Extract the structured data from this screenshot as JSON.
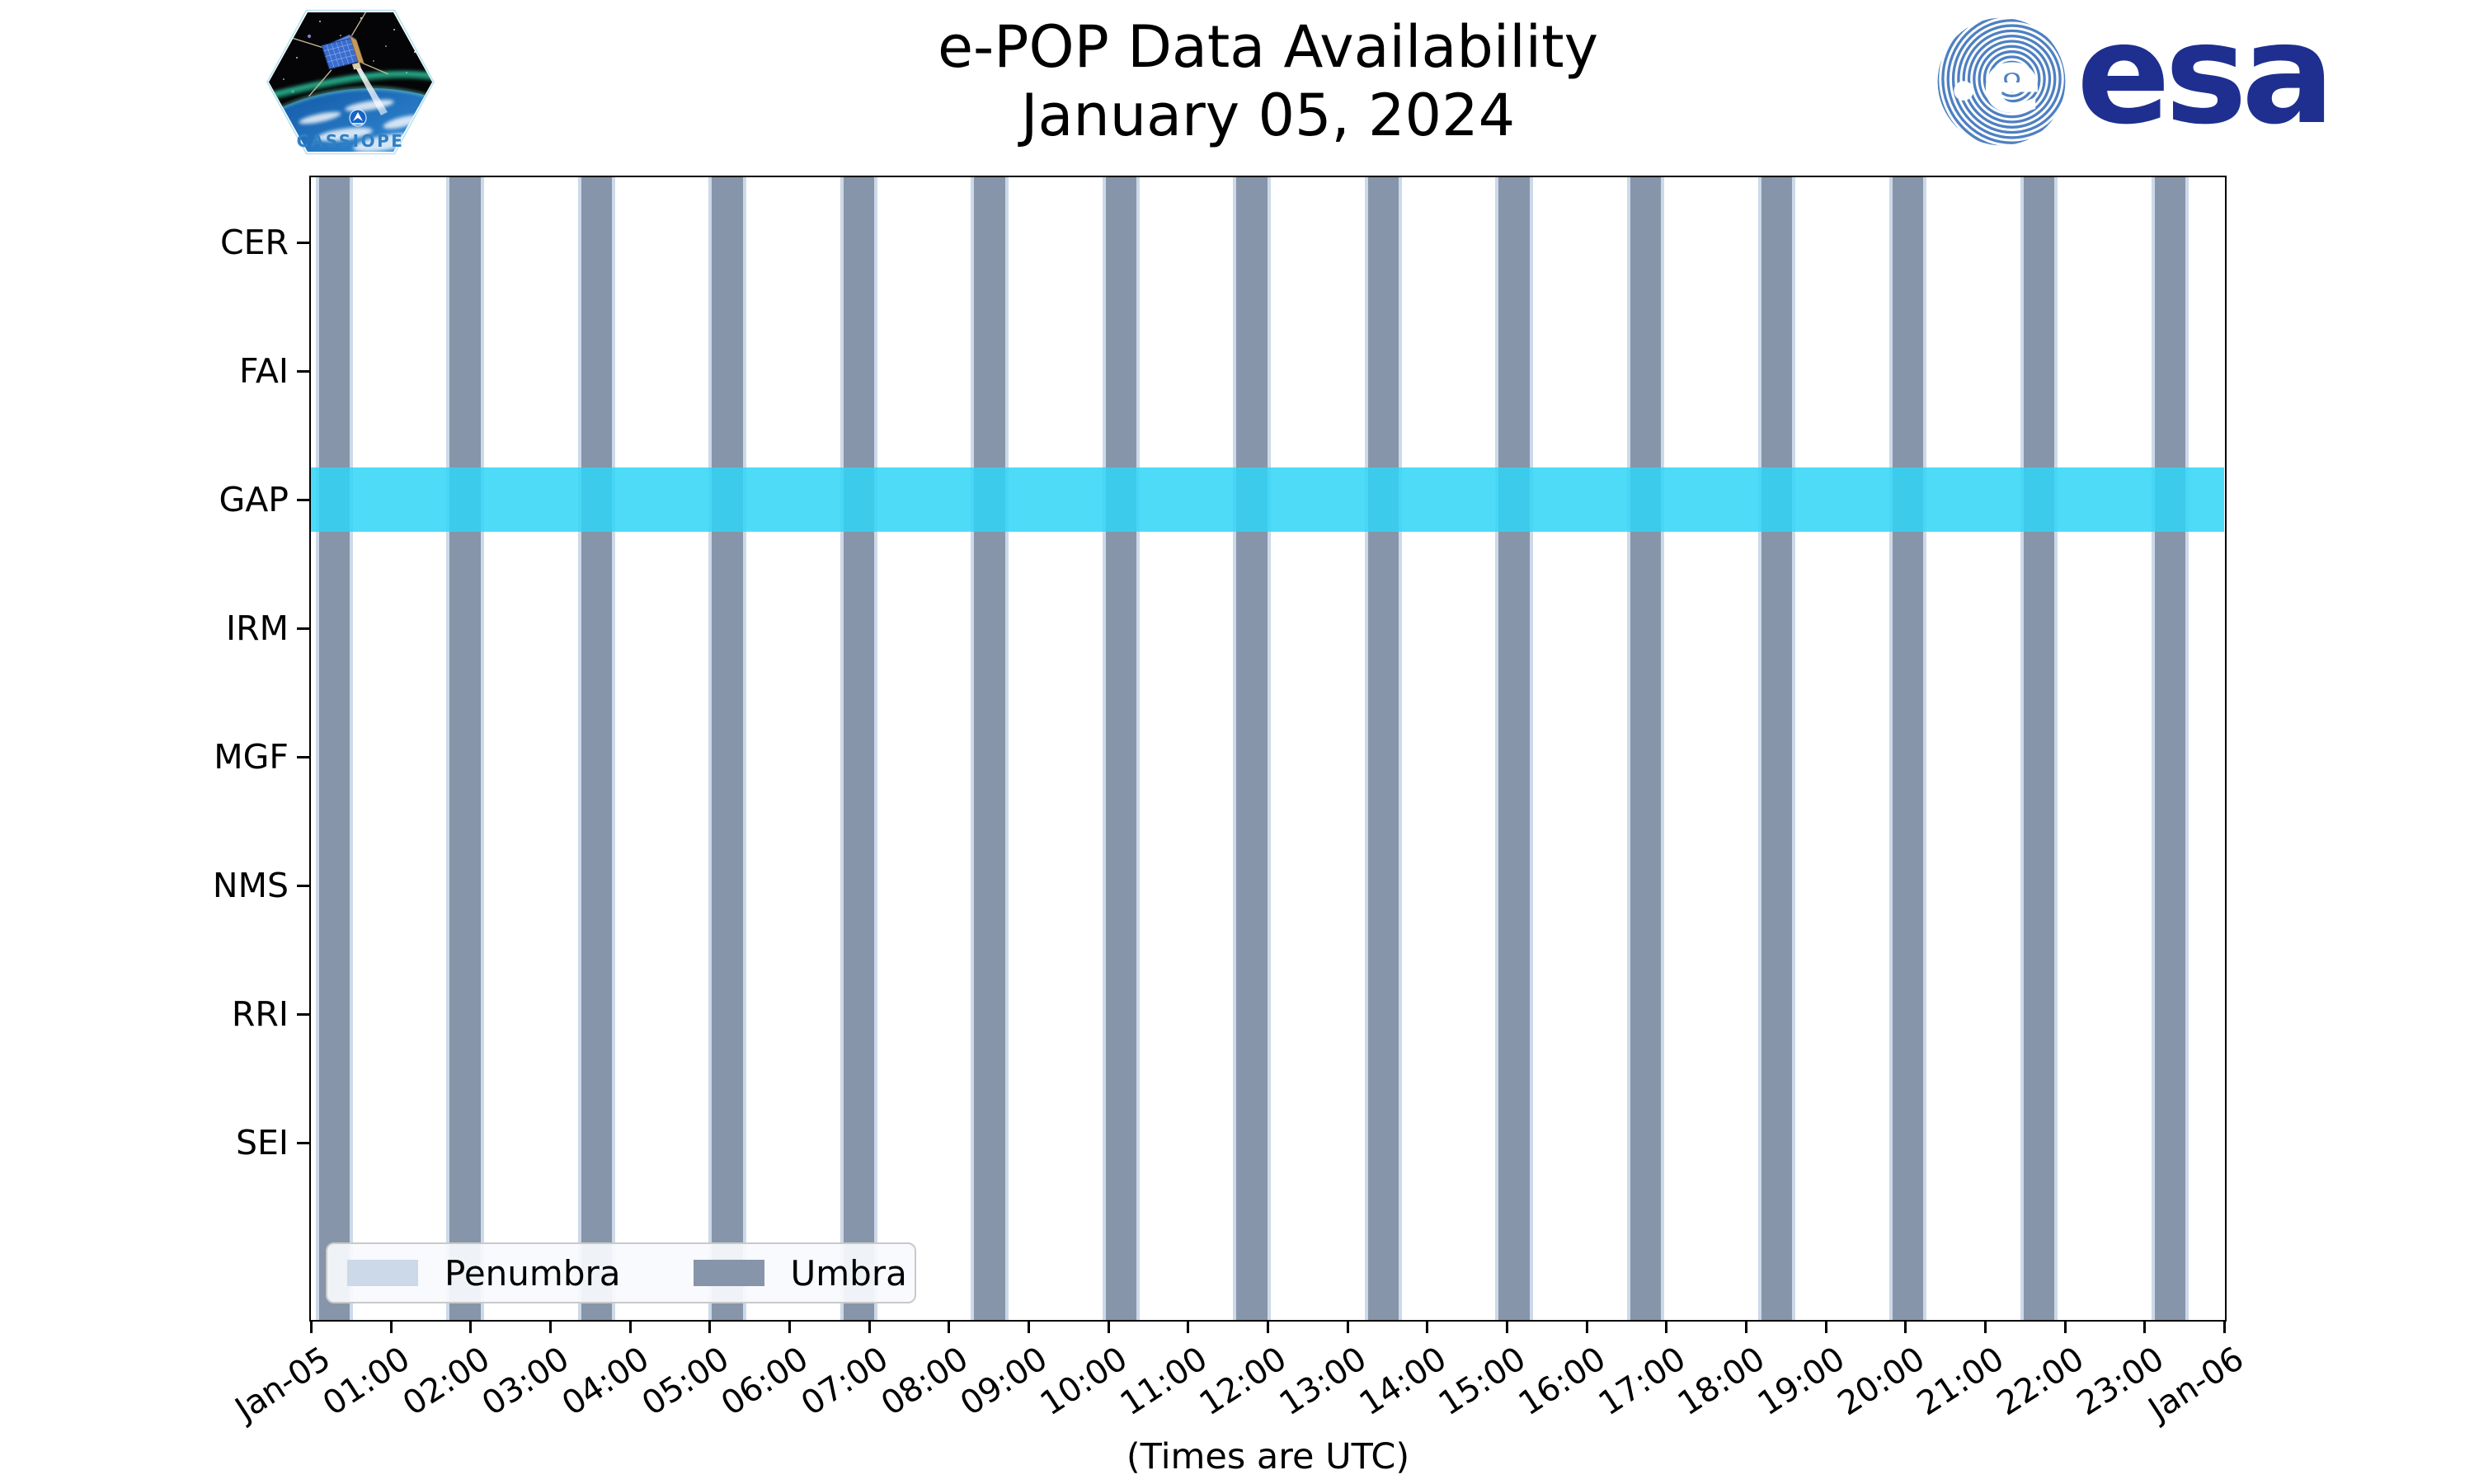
{
  "header": {
    "title": "e-POP Data Availability",
    "subtitle": "January 05, 2024"
  },
  "branding": {
    "cassiope_patch_text": "CASSIOPE",
    "esa_wordmark_text": "esa"
  },
  "chart_data": {
    "type": "bar",
    "variant": "availability-timeline (broken horizontal bars vs. time of day)",
    "title": "e-POP Data Availability",
    "subtitle": "January 05, 2024",
    "xlabel": "(Times are UTC)",
    "x_axis": {
      "span_hours": 24,
      "tick_labels": [
        "Jan-05",
        "01:00",
        "02:00",
        "03:00",
        "04:00",
        "05:00",
        "06:00",
        "07:00",
        "08:00",
        "09:00",
        "10:00",
        "11:00",
        "12:00",
        "13:00",
        "14:00",
        "15:00",
        "16:00",
        "17:00",
        "18:00",
        "19:00",
        "20:00",
        "21:00",
        "22:00",
        "23:00",
        "Jan-06"
      ],
      "tick_label_rotation_deg": -33
    },
    "instruments": [
      "CER",
      "FAI",
      "GAP",
      "IRM",
      "MGF",
      "NMS",
      "RRI",
      "SEI"
    ],
    "availability": [
      {
        "instrument": "GAP",
        "intervals_hours": [
          [
            0,
            24
          ]
        ]
      }
    ],
    "umbra_intervals_hours": [
      [
        0.1,
        0.49
      ],
      [
        1.74,
        2.13
      ],
      [
        3.39,
        3.78
      ],
      [
        5.03,
        5.42
      ],
      [
        6.68,
        7.07
      ],
      [
        8.32,
        8.71
      ],
      [
        9.97,
        10.36
      ],
      [
        11.61,
        12.0
      ],
      [
        13.26,
        13.65
      ],
      [
        14.9,
        15.29
      ],
      [
        16.55,
        16.94
      ],
      [
        18.19,
        18.58
      ],
      [
        19.84,
        20.23
      ],
      [
        21.48,
        21.87
      ],
      [
        23.13,
        23.52
      ]
    ],
    "penumbra_halfwidth_hours": 0.04,
    "legend": [
      {
        "label": "Penumbra",
        "color": "#ccd9e8"
      },
      {
        "label": "Umbra",
        "color": "#8695a9"
      }
    ],
    "legend_position": "lower-left inside plot",
    "grid": false,
    "colors": {
      "umbra_bar": "#8695a9",
      "penumbra_edge": "#ccd9e8",
      "availability_band": "rgba(47,213,247,0.85)",
      "frame": "#000000",
      "esa_navy": "#1f2f8f",
      "esa_stripe_blue": "#4e80c1",
      "cassiope_text_blue": "#2f7fc4"
    }
  }
}
